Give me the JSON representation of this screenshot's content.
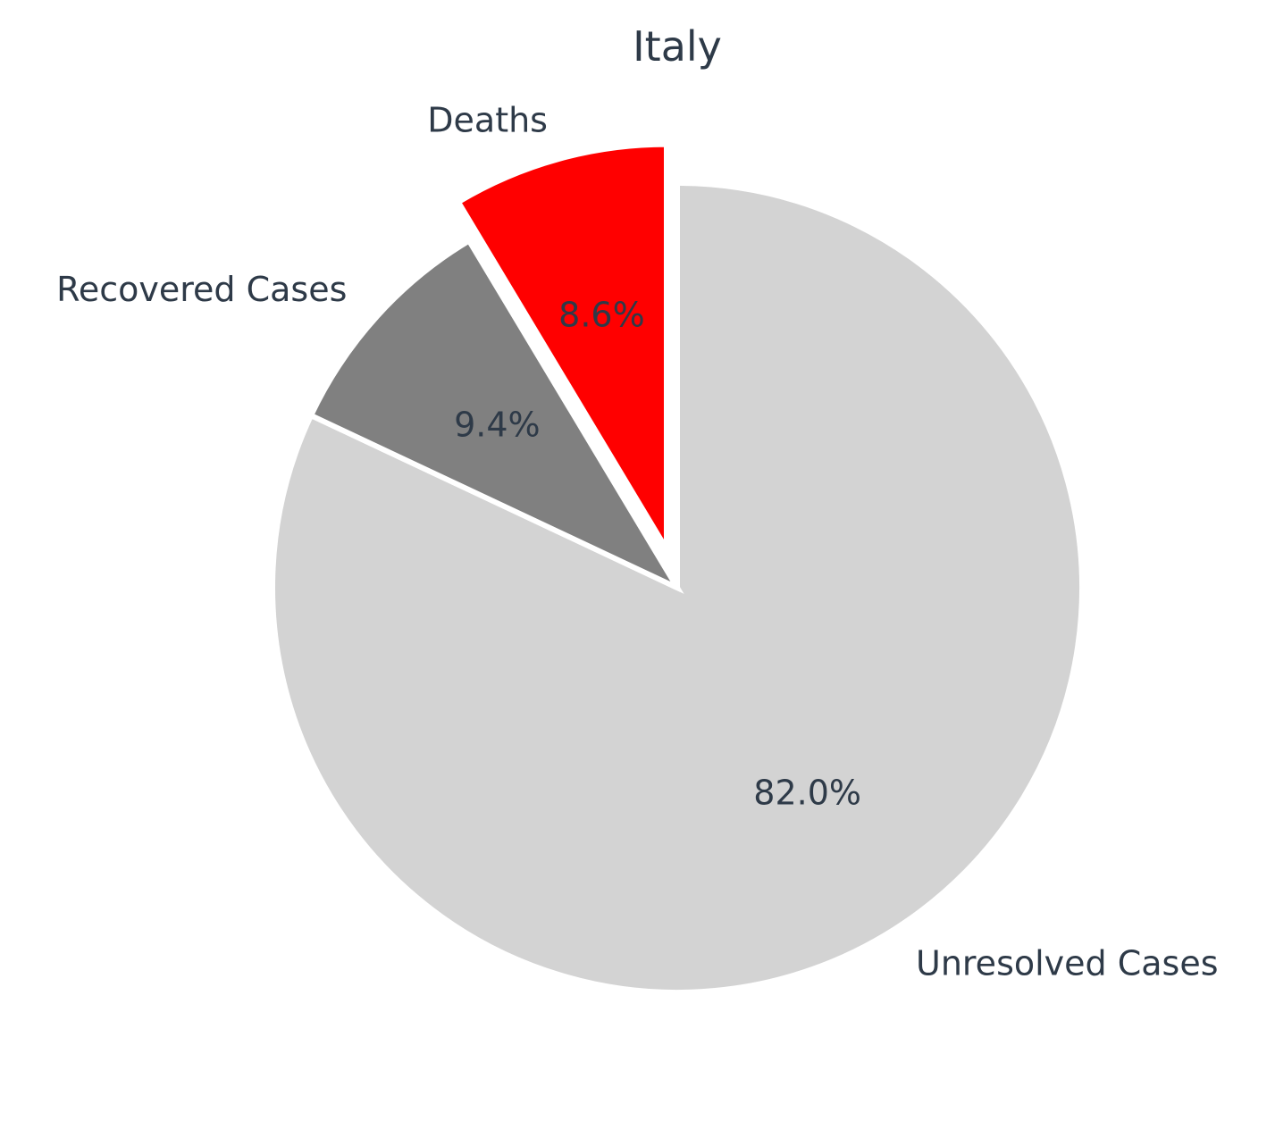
{
  "chart_data": {
    "type": "pie",
    "title": "Italy",
    "slices": [
      {
        "label": "Unresolved Cases",
        "value": 82.0,
        "pct_label": "82.0%",
        "color": "#d3d3d3",
        "exploded": false
      },
      {
        "label": "Recovered Cases",
        "value": 9.4,
        "pct_label": "9.4%",
        "color": "#808080",
        "exploded": false
      },
      {
        "label": "Deaths",
        "value": 8.6,
        "pct_label": "8.6%",
        "color": "#ff0000",
        "exploded": true
      }
    ],
    "start_angle_deg": 90,
    "direction": "clockwise",
    "legend": "none"
  }
}
